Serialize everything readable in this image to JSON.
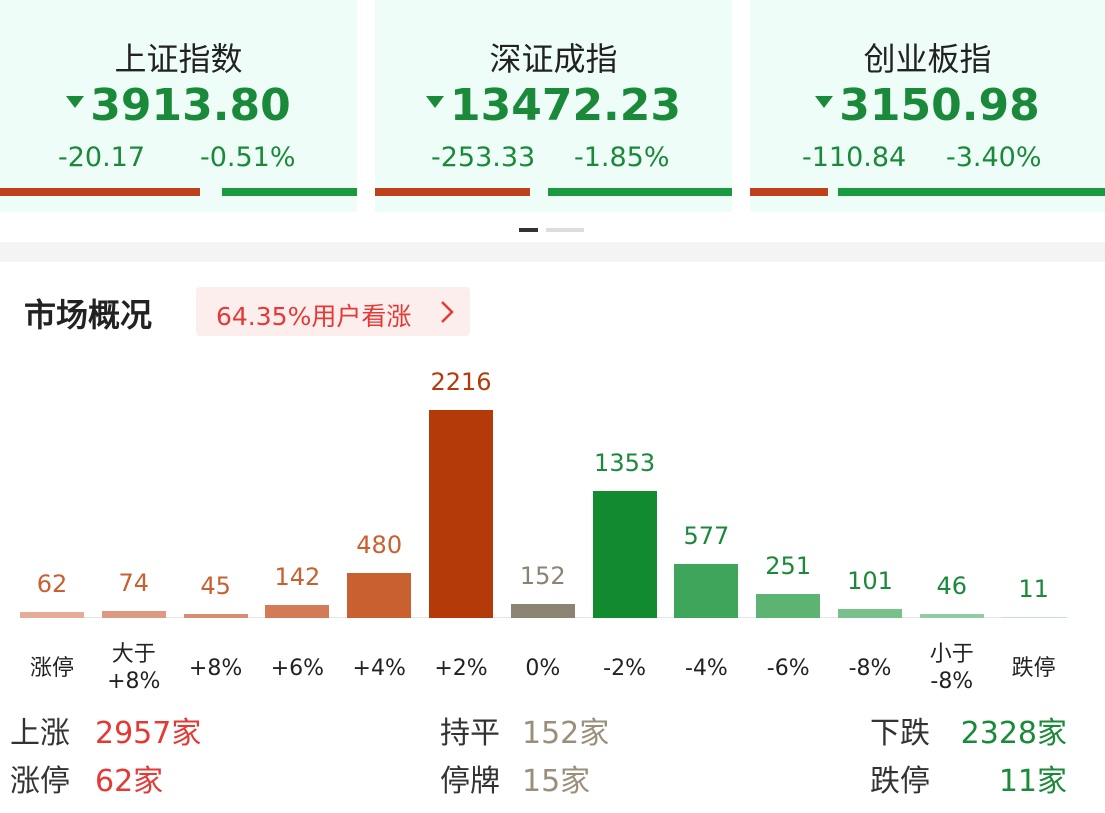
{
  "indices": [
    {
      "name": "上证指数",
      "value": "3913.80",
      "change": "-20.17",
      "percent": "-0.51%"
    },
    {
      "name": "深证成指",
      "value": "13472.23",
      "change": "-253.33",
      "percent": "-1.85%"
    },
    {
      "name": "创业板指",
      "value": "3150.98",
      "change": "-110.84",
      "percent": "-3.40%"
    }
  ],
  "overview": {
    "title": "市场概况",
    "badge": "64.35%用户看涨"
  },
  "distribution": {
    "type": "bar",
    "categories": [
      "涨停",
      "大于\n+8%",
      "+8%",
      "+6%",
      "+4%",
      "+2%",
      "0%",
      "-2%",
      "-4%",
      "-6%",
      "-8%",
      "小于\n-8%",
      "跌停"
    ],
    "values": [
      62,
      74,
      45,
      142,
      480,
      2216,
      152,
      1353,
      577,
      251,
      101,
      46,
      11
    ],
    "colors": [
      "#e8ab98",
      "#dd9a82",
      "#d98e74",
      "#d47a56",
      "#c9602f",
      "#b53a0a",
      "#8c8373",
      "#128a30",
      "#3ea55a",
      "#5db472",
      "#78c18b",
      "#90cda0",
      "#c4e5cd"
    ],
    "label_colors": [
      "#c9602f",
      "#c9602f",
      "#c9602f",
      "#c9602f",
      "#c9602f",
      "#b53a0a",
      "#8c8373",
      "#1a8a3a",
      "#1a8a3a",
      "#1a8a3a",
      "#1a8a3a",
      "#1a8a3a",
      "#1a8a3a"
    ]
  },
  "summary": [
    [
      {
        "label": "上涨",
        "value": "2957家"
      },
      {
        "label": "持平",
        "value": "152家"
      },
      {
        "label": "下跌",
        "value": "2328家"
      }
    ],
    [
      {
        "label": "涨停",
        "value": "62家"
      },
      {
        "label": "停牌",
        "value": "15家"
      },
      {
        "label": "跌停",
        "value": "11家"
      }
    ]
  ]
}
